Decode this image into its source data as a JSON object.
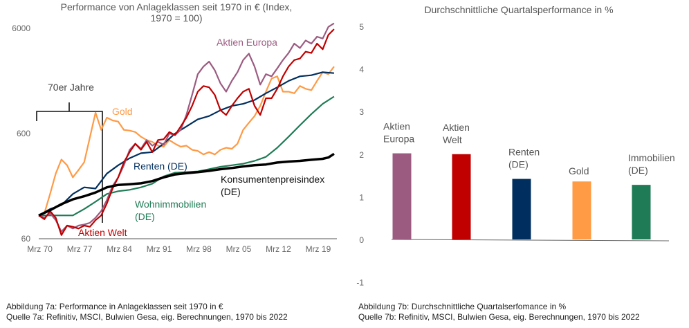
{
  "chart_data": [
    {
      "type": "line",
      "title_line1": "Performance von Anlageklassen seit 1970 in € (Index,",
      "title_line2": "1970 = 100)",
      "yscale": "log",
      "ylim": [
        60,
        6000
      ],
      "yticks": [
        "6000",
        "600",
        "60"
      ],
      "ytick_values": [
        6000,
        600,
        60
      ],
      "xlim": [
        1970,
        2022.5
      ],
      "xticks": [
        "Mrz 70",
        "Mrz 77",
        "Mrz 84",
        "Mrz 91",
        "Mrz 98",
        "Mrz 05",
        "Mrz 12",
        "Mrz 19"
      ],
      "xtick_values": [
        1970.2,
        1977.2,
        1984.2,
        1991.2,
        1998.2,
        2005.2,
        2012.2,
        2019.2
      ],
      "annotation": "70er Jahre",
      "series": [
        {
          "name": "Aktien Europa",
          "label": "Aktien Europa",
          "color": "#9b5b80",
          "points": [
            [
              1970,
              100
            ],
            [
              1971,
              95
            ],
            [
              1972,
              105
            ],
            [
              1973,
              90
            ],
            [
              1974,
              70
            ],
            [
              1975,
              80
            ],
            [
              1976,
              75
            ],
            [
              1977,
              80
            ],
            [
              1978,
              82
            ],
            [
              1979,
              85
            ],
            [
              1980,
              95
            ],
            [
              1981,
              110
            ],
            [
              1982,
              140
            ],
            [
              1983,
              190
            ],
            [
              1984,
              230
            ],
            [
              1985,
              300
            ],
            [
              1986,
              420
            ],
            [
              1987,
              480
            ],
            [
              1988,
              430
            ],
            [
              1989,
              520
            ],
            [
              1990,
              460
            ],
            [
              1991,
              500
            ],
            [
              1992,
              470
            ],
            [
              1993,
              600
            ],
            [
              1994,
              580
            ],
            [
              1995,
              650
            ],
            [
              1996,
              900
            ],
            [
              1997,
              1400
            ],
            [
              1998,
              2200
            ],
            [
              1999,
              2600
            ],
            [
              2000,
              2900
            ],
            [
              2001,
              2400
            ],
            [
              2002,
              1800
            ],
            [
              2003,
              1500
            ],
            [
              2004,
              1900
            ],
            [
              2005,
              2300
            ],
            [
              2006,
              3000
            ],
            [
              2007,
              3450
            ],
            [
              2008,
              2600
            ],
            [
              2009,
              1750
            ],
            [
              2010,
              2200
            ],
            [
              2011,
              2100
            ],
            [
              2012,
              2500
            ],
            [
              2013,
              3000
            ],
            [
              2014,
              3500
            ],
            [
              2015,
              4300
            ],
            [
              2016,
              3900
            ],
            [
              2017,
              4600
            ],
            [
              2018,
              4300
            ],
            [
              2019,
              5000
            ],
            [
              2020,
              4800
            ],
            [
              2021,
              6200
            ],
            [
              2022,
              6700
            ]
          ]
        },
        {
          "name": "Aktien Welt",
          "label": "Aktien Welt",
          "color": "#c00000",
          "points": [
            [
              1970,
              100
            ],
            [
              1971,
              92
            ],
            [
              1972,
              110
            ],
            [
              1973,
              95
            ],
            [
              1974,
              65
            ],
            [
              1975,
              80
            ],
            [
              1976,
              78
            ],
            [
              1977,
              75
            ],
            [
              1978,
              80
            ],
            [
              1979,
              78
            ],
            [
              1980,
              90
            ],
            [
              1981,
              100
            ],
            [
              1982,
              130
            ],
            [
              1983,
              180
            ],
            [
              1984,
              230
            ],
            [
              1985,
              320
            ],
            [
              1986,
              400
            ],
            [
              1987,
              480
            ],
            [
              1988,
              420
            ],
            [
              1989,
              500
            ],
            [
              1990,
              400
            ],
            [
              1991,
              520
            ],
            [
              1992,
              530
            ],
            [
              1993,
              620
            ],
            [
              1994,
              580
            ],
            [
              1995,
              700
            ],
            [
              1996,
              850
            ],
            [
              1997,
              1100
            ],
            [
              1998,
              1500
            ],
            [
              1999,
              1700
            ],
            [
              2000,
              1650
            ],
            [
              2001,
              1400
            ],
            [
              2002,
              1000
            ],
            [
              2003,
              900
            ],
            [
              2004,
              1100
            ],
            [
              2005,
              1300
            ],
            [
              2006,
              1500
            ],
            [
              2007,
              1600
            ],
            [
              2008,
              1100
            ],
            [
              2009,
              900
            ],
            [
              2010,
              1300
            ],
            [
              2011,
              1300
            ],
            [
              2012,
              1600
            ],
            [
              2013,
              2100
            ],
            [
              2014,
              2600
            ],
            [
              2015,
              3000
            ],
            [
              2016,
              3100
            ],
            [
              2017,
              3600
            ],
            [
              2018,
              3500
            ],
            [
              2019,
              4300
            ],
            [
              2020,
              3800
            ],
            [
              2021,
              5200
            ],
            [
              2022,
              5900
            ]
          ]
        },
        {
          "name": "Gold",
          "label": "Gold",
          "color": "#ff9a45",
          "points": [
            [
              1970,
              100
            ],
            [
              1971,
              105
            ],
            [
              1972,
              160
            ],
            [
              1973,
              250
            ],
            [
              1974,
              340
            ],
            [
              1975,
              300
            ],
            [
              1976,
              230
            ],
            [
              1977,
              270
            ],
            [
              1978,
              320
            ],
            [
              1979,
              550
            ],
            [
              1980,
              950
            ],
            [
              1981,
              650
            ],
            [
              1982,
              850
            ],
            [
              1983,
              800
            ],
            [
              1984,
              780
            ],
            [
              1985,
              650
            ],
            [
              1986,
              640
            ],
            [
              1987,
              620
            ],
            [
              1988,
              560
            ],
            [
              1989,
              520
            ],
            [
              1990,
              500
            ],
            [
              1991,
              460
            ],
            [
              1992,
              450
            ],
            [
              1993,
              520
            ],
            [
              1994,
              480
            ],
            [
              1995,
              450
            ],
            [
              1996,
              460
            ],
            [
              1997,
              420
            ],
            [
              1998,
              410
            ],
            [
              1999,
              380
            ],
            [
              2000,
              400
            ],
            [
              2001,
              380
            ],
            [
              2002,
              420
            ],
            [
              2003,
              440
            ],
            [
              2004,
              430
            ],
            [
              2005,
              480
            ],
            [
              2006,
              650
            ],
            [
              2007,
              760
            ],
            [
              2008,
              880
            ],
            [
              2009,
              1100
            ],
            [
              2010,
              1500
            ],
            [
              2011,
              2000
            ],
            [
              2012,
              2100
            ],
            [
              2013,
              1500
            ],
            [
              2014,
              1500
            ],
            [
              2015,
              1450
            ],
            [
              2016,
              1700
            ],
            [
              2017,
              1600
            ],
            [
              2018,
              1550
            ],
            [
              2019,
              1900
            ],
            [
              2020,
              2300
            ],
            [
              2021,
              2200
            ],
            [
              2022,
              2600
            ]
          ]
        },
        {
          "name": "Renten (DE)",
          "label": "Renten (DE)",
          "color": "#002f5f",
          "points": [
            [
              1970,
              100
            ],
            [
              1972,
              115
            ],
            [
              1974,
              125
            ],
            [
              1976,
              160
            ],
            [
              1978,
              185
            ],
            [
              1980,
              180
            ],
            [
              1982,
              250
            ],
            [
              1984,
              300
            ],
            [
              1986,
              350
            ],
            [
              1988,
              390
            ],
            [
              1990,
              400
            ],
            [
              1992,
              480
            ],
            [
              1994,
              600
            ],
            [
              1996,
              700
            ],
            [
              1998,
              820
            ],
            [
              2000,
              880
            ],
            [
              2002,
              1000
            ],
            [
              2004,
              1100
            ],
            [
              2006,
              1150
            ],
            [
              2008,
              1250
            ],
            [
              2010,
              1450
            ],
            [
              2012,
              1650
            ],
            [
              2014,
              1900
            ],
            [
              2016,
              2100
            ],
            [
              2018,
              2150
            ],
            [
              2020,
              2300
            ],
            [
              2022,
              2250
            ]
          ]
        },
        {
          "name": "Konsumentenpreisindex (DE)",
          "label": "Konsumentenpreisindex",
          "label2": "(DE)",
          "color": "#000000",
          "points": [
            [
              1970,
              100
            ],
            [
              1972,
              112
            ],
            [
              1974,
              128
            ],
            [
              1976,
              142
            ],
            [
              1978,
              152
            ],
            [
              1980,
              165
            ],
            [
              1982,
              185
            ],
            [
              1984,
              195
            ],
            [
              1986,
              198
            ],
            [
              1988,
              202
            ],
            [
              1990,
              212
            ],
            [
              1992,
              230
            ],
            [
              1994,
              245
            ],
            [
              1996,
              252
            ],
            [
              1998,
              258
            ],
            [
              2000,
              265
            ],
            [
              2002,
              275
            ],
            [
              2004,
              282
            ],
            [
              2006,
              292
            ],
            [
              2008,
              300
            ],
            [
              2010,
              305
            ],
            [
              2012,
              318
            ],
            [
              2014,
              325
            ],
            [
              2016,
              330
            ],
            [
              2018,
              338
            ],
            [
              2020,
              345
            ],
            [
              2021,
              355
            ],
            [
              2022,
              385
            ]
          ]
        },
        {
          "name": "Wohnimmobilien (DE)",
          "label": "Wohnimmobilien",
          "label2": "(DE)",
          "color": "#1e7b55",
          "points": [
            [
              1970,
              100
            ],
            [
              1974,
              100
            ],
            [
              1976,
              100
            ],
            [
              1978,
              115
            ],
            [
              1980,
              135
            ],
            [
              1982,
              160
            ],
            [
              1984,
              170
            ],
            [
              1986,
              175
            ],
            [
              1988,
              185
            ],
            [
              1990,
              200
            ],
            [
              1992,
              235
            ],
            [
              1994,
              255
            ],
            [
              1996,
              258
            ],
            [
              1998,
              262
            ],
            [
              2000,
              275
            ],
            [
              2002,
              290
            ],
            [
              2004,
              300
            ],
            [
              2006,
              310
            ],
            [
              2008,
              330
            ],
            [
              2010,
              360
            ],
            [
              2012,
              440
            ],
            [
              2014,
              560
            ],
            [
              2016,
              720
            ],
            [
              2018,
              920
            ],
            [
              2020,
              1150
            ],
            [
              2022,
              1350
            ]
          ]
        }
      ]
    },
    {
      "type": "bar",
      "title": "Durchschnittliche Quartalsperformance in %",
      "ylim": [
        -1,
        5
      ],
      "yticks": [
        "5",
        "4",
        "3",
        "2",
        "1",
        "0",
        "-1"
      ],
      "ytick_values": [
        5,
        4,
        3,
        2,
        1,
        0,
        -1
      ],
      "categories": [
        [
          "Aktien",
          "Europa"
        ],
        [
          "Aktien",
          "Welt"
        ],
        [
          "Renten",
          "(DE)"
        ],
        [
          "Gold",
          ""
        ],
        [
          "Immobilien",
          "(DE)"
        ]
      ],
      "values": [
        2.02,
        2.0,
        1.42,
        1.36,
        1.28
      ],
      "colors": [
        "#9b5b80",
        "#c00000",
        "#002f5f",
        "#ff9a45",
        "#1e7b55"
      ]
    }
  ],
  "captions": {
    "left_line1": "Abbildung 7a: Performance in Anlageklassen seit 1970 in €",
    "left_line2": "Quelle 7a: Refinitiv, MSCI, Bulwien Gesa, eig. Berechnungen, 1970 bis 2022",
    "right_line1": "Abbildung 7b: Durchschnittliche Quartalserfomance in %",
    "right_line2": "Quelle 7b: Refinitiv, MSCI, Bulwien Gesa, eig. Berechnungen, 1970 bis 2022"
  }
}
